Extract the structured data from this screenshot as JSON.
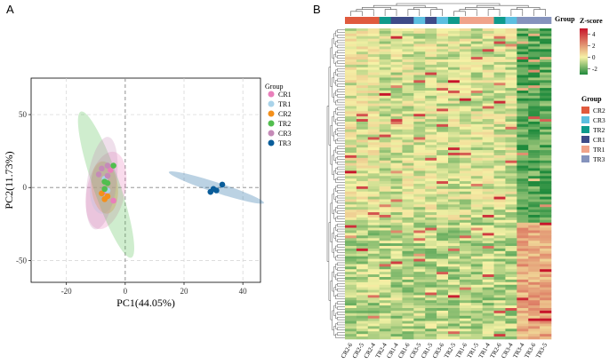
{
  "chart_data": [
    {
      "type": "scatter",
      "panel_label": "A",
      "xlabel": "PC1(44.05%)",
      "ylabel": "PC2(11.73%)",
      "xlim": [
        -32,
        46
      ],
      "ylim": [
        -65,
        75
      ],
      "xticks": [
        -20,
        0,
        20,
        40
      ],
      "yticks": [
        50,
        0,
        -50
      ],
      "grid": true,
      "legend_title": "Group",
      "legend_position": "right",
      "groups": [
        {
          "name": "CR1",
          "color": "#e97fbb",
          "points": [
            [
              -5,
              12
            ],
            [
              -6,
              3
            ],
            [
              -7,
              -3
            ],
            [
              -4,
              -9
            ]
          ],
          "ellipse": {
            "cx": -6.5,
            "cy": -2,
            "rx": 6.5,
            "ry": 27,
            "angle": 12
          }
        },
        {
          "name": "TR1",
          "color": "#a9d3ea",
          "points": [
            [
              -6,
              -2
            ],
            [
              -7,
              6
            ],
            [
              -6,
              -6
            ]
          ],
          "ellipse": {
            "cx": -7.5,
            "cy": 0,
            "rx": 4.5,
            "ry": 18,
            "angle": 4
          }
        },
        {
          "name": "CR2",
          "color": "#f4901b",
          "points": [
            [
              -7,
              -8
            ],
            [
              -6,
              -6
            ],
            [
              -8,
              -4
            ]
          ],
          "ellipse": {
            "cx": -7,
            "cy": 0,
            "rx": 4.5,
            "ry": 18,
            "angle": -6
          }
        },
        {
          "name": "TR2",
          "color": "#52be4f",
          "points": [
            [
              -4,
              15
            ],
            [
              -7,
              4
            ],
            [
              -7,
              -1
            ],
            [
              -6,
              3
            ]
          ],
          "ellipse": {
            "cx": -6.5,
            "cy": 2,
            "rx": 4.5,
            "ry": 53,
            "angle": -19
          }
        },
        {
          "name": "CR3",
          "color": "#c58bb8",
          "points": [
            [
              -6,
              15
            ],
            [
              -8,
              13
            ],
            [
              -9,
              9
            ],
            [
              -6,
              8
            ]
          ],
          "ellipse": {
            "cx": -8,
            "cy": 3,
            "rx": 5,
            "ry": 32,
            "angle": 8
          }
        },
        {
          "name": "TR3",
          "color": "#0a5d9a",
          "points": [
            [
              30,
              -1
            ],
            [
              31,
              -2
            ],
            [
              33,
              2
            ],
            [
              29,
              -3
            ]
          ],
          "ellipse": {
            "cx": 31,
            "cy": 0,
            "rx": 17,
            "ry": 3.5,
            "angle": 18
          }
        }
      ]
    },
    {
      "type": "heatmap",
      "panel_label": "B",
      "columns": [
        "CR2-6",
        "CR2-5",
        "CR2-4",
        "TR2-4",
        "CR1-4",
        "CR1-6",
        "CR3-5",
        "CR1-5",
        "CR3-6",
        "TR2-5",
        "TR1-6",
        "TR1-5",
        "TR1-4",
        "TR2-6",
        "CR3-4",
        "TR3-4",
        "TR3-6",
        "TR3-5"
      ],
      "column_group": [
        "CR2",
        "CR2",
        "CR2",
        "TR2",
        "CR1",
        "CR1",
        "CR3",
        "CR1",
        "CR3",
        "TR2",
        "TR1",
        "TR1",
        "TR1",
        "TR2",
        "CR3",
        "TR3",
        "TR3",
        "TR3"
      ],
      "group_legend_title": "Group",
      "group_colors": {
        "CR2": "#e05a3e",
        "CR3": "#5cbfe0",
        "TR2": "#0e9a8c",
        "CR1": "#3e4b88",
        "TR1": "#f0a38a",
        "TR3": "#8593bd"
      },
      "group_legend_order": [
        "CR2",
        "CR3",
        "TR2",
        "CR1",
        "TR1",
        "TR3"
      ],
      "annotation_label": "Group",
      "colorbar": {
        "title": "Z-score",
        "ticks": [
          4,
          2,
          0,
          -2
        ],
        "range": [
          -3,
          5
        ],
        "colors": [
          "#1f8a3c",
          "#f6f2a6",
          "#c7142b"
        ]
      },
      "n_rows": 120
    }
  ]
}
